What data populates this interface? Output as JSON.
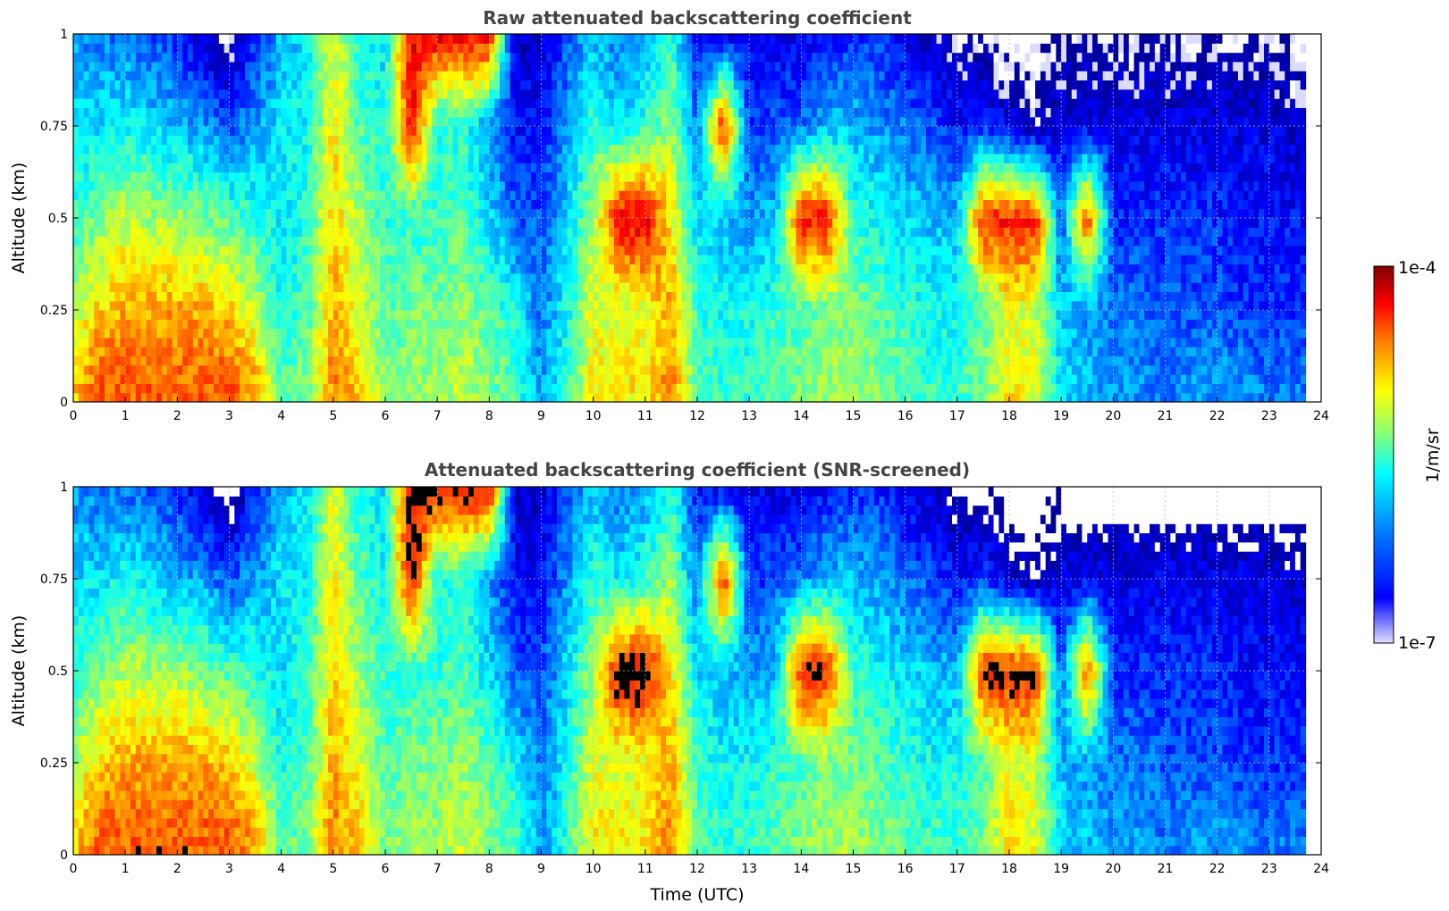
{
  "chart_data": [
    {
      "type": "heatmap",
      "title": "Raw attenuated backscattering coefficient",
      "xlabel": "",
      "ylabel": "Altitude (km)",
      "xlim": [
        0,
        24
      ],
      "ylim": [
        0,
        1
      ],
      "x_ticks": [
        "0",
        "1",
        "2",
        "3",
        "4",
        "5",
        "6",
        "7",
        "8",
        "9",
        "10",
        "11",
        "12",
        "13",
        "14",
        "15",
        "16",
        "17",
        "18",
        "19",
        "20",
        "21",
        "22",
        "23",
        "24"
      ],
      "y_ticks": [
        "0",
        "0.25",
        "0.5",
        "0.75",
        "1"
      ],
      "grid": true,
      "value_scale": "log",
      "data_end_hour": 23.7,
      "profiles": {
        "hours": [
          0,
          0.5,
          1,
          1.5,
          2,
          2.5,
          3,
          3.5,
          4,
          4.5,
          5,
          5.5,
          6,
          6.5,
          7,
          7.5,
          8,
          8.5,
          9,
          9.5,
          10,
          10.5,
          11,
          11.5,
          12,
          12.5,
          13,
          13.5,
          14,
          14.5,
          15,
          15.5,
          16,
          16.5,
          17,
          17.5,
          18,
          18.5,
          19,
          19.5,
          20,
          20.5,
          21,
          21.5,
          22,
          22.5,
          23,
          23.5
        ],
        "altitudes_km": [
          0.05,
          0.25,
          0.5,
          0.75,
          1.0
        ],
        "log10_backscatter": [
          [
            -4.9,
            -5.3,
            -5.6,
            -5.8,
            -6.0
          ],
          [
            -4.6,
            -4.9,
            -5.4,
            -5.8,
            -6.1
          ],
          [
            -4.6,
            -4.8,
            -5.2,
            -5.7,
            -6.1
          ],
          [
            -4.6,
            -4.8,
            -5.3,
            -5.8,
            -6.2
          ],
          [
            -4.6,
            -4.8,
            -5.3,
            -5.9,
            -6.3
          ],
          [
            -4.6,
            -4.8,
            -5.4,
            -6.0,
            -6.6
          ],
          [
            -4.6,
            -4.9,
            -5.5,
            -6.2,
            -6.9
          ],
          [
            -4.8,
            -5.2,
            -5.6,
            -6.0,
            -6.3
          ],
          [
            -5.5,
            -5.7,
            -5.8,
            -5.8,
            -5.9
          ],
          [
            -5.4,
            -5.5,
            -5.6,
            -5.7,
            -5.8
          ],
          [
            -4.7,
            -4.8,
            -4.9,
            -5.0,
            -5.1
          ],
          [
            -4.9,
            -5.1,
            -5.3,
            -5.5,
            -5.7
          ],
          [
            -5.4,
            -5.5,
            -5.6,
            -5.7,
            -5.8
          ],
          [
            -5.3,
            -5.4,
            -5.6,
            -4.3,
            -4.3
          ],
          [
            -5.3,
            -5.4,
            -5.6,
            -5.7,
            -4.3
          ],
          [
            -5.2,
            -5.3,
            -5.5,
            -5.6,
            -4.3
          ],
          [
            -5.4,
            -5.5,
            -5.8,
            -6.0,
            -4.3
          ],
          [
            -5.5,
            -5.7,
            -6.2,
            -6.4,
            -6.6
          ],
          [
            -6.0,
            -6.1,
            -6.2,
            -6.4,
            -6.6
          ],
          [
            -5.6,
            -5.7,
            -5.8,
            -6.0,
            -6.2
          ],
          [
            -5.0,
            -5.1,
            -5.3,
            -5.6,
            -5.9
          ],
          [
            -5.0,
            -5.2,
            -4.3,
            -5.8,
            -6.1
          ],
          [
            -5.0,
            -5.1,
            -4.3,
            -5.6,
            -6.0
          ],
          [
            -4.7,
            -4.8,
            -5.0,
            -5.3,
            -5.6
          ],
          [
            -5.5,
            -5.6,
            -5.8,
            -6.1,
            -6.4
          ],
          [
            -5.6,
            -5.7,
            -5.9,
            -4.4,
            -6.5
          ],
          [
            -5.6,
            -5.7,
            -6.0,
            -6.3,
            -6.5
          ],
          [
            -5.5,
            -5.6,
            -5.9,
            -6.2,
            -6.5
          ],
          [
            -5.4,
            -5.5,
            -4.4,
            -6.1,
            -6.5
          ],
          [
            -5.3,
            -5.4,
            -4.4,
            -5.9,
            -6.4
          ],
          [
            -5.3,
            -5.4,
            -5.6,
            -5.9,
            -6.3
          ],
          [
            -5.4,
            -5.5,
            -5.7,
            -6.0,
            -6.3
          ],
          [
            -5.5,
            -5.6,
            -5.8,
            -6.1,
            -6.5
          ],
          [
            -5.6,
            -5.7,
            -5.9,
            -6.2,
            -6.6
          ],
          [
            -5.6,
            -5.7,
            -5.9,
            -6.4,
            -6.8
          ],
          [
            -5.4,
            -5.5,
            -4.4,
            -6.3,
            -6.8
          ],
          [
            -5.0,
            -5.1,
            -4.4,
            -6.5,
            -7.0
          ],
          [
            -5.1,
            -5.2,
            -4.4,
            -6.7,
            -7.0
          ],
          [
            -5.8,
            -5.9,
            -6.2,
            -6.5,
            -6.8
          ],
          [
            -5.9,
            -6.0,
            -4.5,
            -6.5,
            -6.8
          ],
          [
            -6.0,
            -6.1,
            -6.3,
            -6.5,
            -6.8
          ],
          [
            -6.0,
            -6.1,
            -6.3,
            -6.5,
            -6.8
          ],
          [
            -6.1,
            -6.2,
            -6.3,
            -6.5,
            -6.8
          ],
          [
            -6.0,
            -6.2,
            -6.3,
            -6.5,
            -6.8
          ],
          [
            -6.0,
            -6.2,
            -6.3,
            -6.5,
            -6.8
          ],
          [
            -6.0,
            -6.3,
            -6.4,
            -6.5,
            -6.8
          ],
          [
            -6.1,
            -6.3,
            -6.4,
            -6.5,
            -6.8
          ],
          [
            -6.1,
            -6.3,
            -6.4,
            -6.6,
            -6.9
          ]
        ]
      }
    },
    {
      "type": "heatmap",
      "title": "Attenuated backscattering coefficient (SNR-screened)",
      "xlabel": "Time (UTC)",
      "ylabel": "Altitude (km)",
      "xlim": [
        0,
        24
      ],
      "ylim": [
        0,
        1
      ],
      "x_ticks": [
        "0",
        "1",
        "2",
        "3",
        "4",
        "5",
        "6",
        "7",
        "8",
        "9",
        "10",
        "11",
        "12",
        "13",
        "14",
        "15",
        "16",
        "17",
        "18",
        "19",
        "20",
        "21",
        "22",
        "23",
        "24"
      ],
      "y_ticks": [
        "0",
        "0.25",
        "0.5",
        "0.75",
        "1"
      ],
      "grid": true,
      "value_scale": "log",
      "data_end_hour": 23.7,
      "screened_above_km_after_19h": 0.9,
      "saturated_color": "#000000"
    }
  ],
  "colorbar": {
    "label": "1/m/sr",
    "max_label": "1e-4",
    "min_label": "1e-7",
    "range_log10": [
      -7,
      -4
    ]
  },
  "colors": {
    "colormap": [
      "#00008f",
      "#0000ff",
      "#0080ff",
      "#00ffff",
      "#80ff80",
      "#ffff00",
      "#ff8000",
      "#ff0000",
      "#800000"
    ],
    "low_values": "#dcdcff",
    "background": "#ffffff"
  }
}
